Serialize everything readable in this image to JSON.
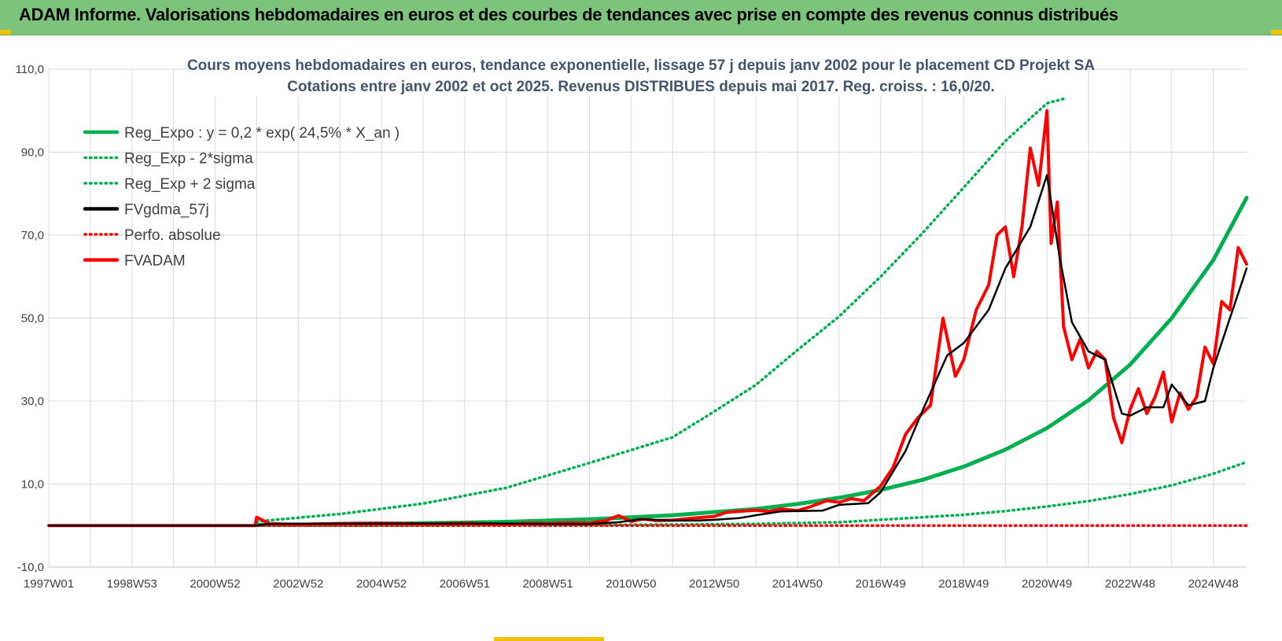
{
  "header": {
    "title": "ADAM Informe. Valorisations hebdomadaires en euros et des courbes de tendances avec prise en compte des revenus connus distribués"
  },
  "chart_data": {
    "type": "line",
    "title": "Cours moyens hebdomadaires en euros, tendance exponentielle, lissage 57 j depuis janv 2002 pour le placement CD Projekt SA",
    "subtitle": "Cotations entre janv 2002 et oct 2025. Revenus DISTRIBUES depuis mai 2017. Reg. croiss. : 16,0/20.",
    "xlabel": "",
    "ylabel": "",
    "x_range": [
      1997.0,
      2025.8
    ],
    "ylim": [
      -10,
      110
    ],
    "y_ticks": [
      -10,
      10,
      30,
      50,
      70,
      90,
      110
    ],
    "y_tick_labels": [
      "-10,0",
      "10,0",
      "30,0",
      "50,0",
      "70,0",
      "90,0",
      "110,0"
    ],
    "x_ticks": [
      {
        "label": "1997W01",
        "x": 1997.0
      },
      {
        "label": "1998W53",
        "x": 1999.0
      },
      {
        "label": "2000W52",
        "x": 2001.0
      },
      {
        "label": "2002W52",
        "x": 2003.0
      },
      {
        "label": "2004W52",
        "x": 2005.0
      },
      {
        "label": "2006W51",
        "x": 2007.0
      },
      {
        "label": "2008W51",
        "x": 2009.0
      },
      {
        "label": "2010W50",
        "x": 2011.0
      },
      {
        "label": "2012W50",
        "x": 2013.0
      },
      {
        "label": "2014W50",
        "x": 2015.0
      },
      {
        "label": "2016W49",
        "x": 2017.0
      },
      {
        "label": "2018W49",
        "x": 2019.0
      },
      {
        "label": "2020W49",
        "x": 2021.0
      },
      {
        "label": "2022W48",
        "x": 2023.0
      },
      {
        "label": "2024W48",
        "x": 2025.0
      }
    ],
    "grid": true,
    "legend_position": "top-left",
    "series": [
      {
        "name": "Reg_Expo : y = 0,2 * exp( 24,5% *  X_an )",
        "color": "#00b050",
        "style": "solid",
        "x": [
          2002.0,
          2004.0,
          2006.0,
          2008.0,
          2010.0,
          2012.0,
          2014.0,
          2015.0,
          2016.0,
          2017.0,
          2018.0,
          2019.0,
          2020.0,
          2021.0,
          2022.0,
          2023.0,
          2024.0,
          2025.0,
          2025.8
        ],
        "y": [
          0.2,
          0.3,
          0.55,
          0.9,
          1.5,
          2.5,
          4.0,
          5.2,
          6.7,
          8.6,
          11.0,
          14.2,
          18.3,
          23.5,
          30.2,
          38.8,
          50.0,
          64.0,
          79.0
        ]
      },
      {
        "name": "Reg_Exp - 2*sigma",
        "color": "#00b050",
        "style": "dotted",
        "x": [
          2002.0,
          2004.0,
          2006.0,
          2008.0,
          2010.0,
          2012.0,
          2014.0,
          2016.0,
          2018.0,
          2019.0,
          2020.0,
          2021.0,
          2022.0,
          2023.0,
          2024.0,
          2025.0,
          2025.8
        ],
        "y": [
          0.0,
          0.0,
          0.05,
          0.1,
          0.15,
          0.25,
          0.4,
          0.8,
          2.0,
          2.6,
          3.5,
          4.6,
          5.9,
          7.6,
          9.7,
          12.5,
          15.3
        ]
      },
      {
        "name": "Reg_Exp + 2 sigma",
        "color": "#00b050",
        "style": "dotted",
        "x": [
          2002.0,
          2004.0,
          2006.0,
          2008.0,
          2010.0,
          2012.0,
          2013.0,
          2014.0,
          2015.0,
          2016.0,
          2017.0,
          2018.0,
          2019.0,
          2020.0,
          2021.0,
          2021.45
        ],
        "y": [
          1.0,
          2.8,
          5.3,
          9.1,
          15.1,
          21.3,
          27.5,
          33.9,
          42.3,
          50.4,
          60.0,
          70.4,
          81.5,
          92.7,
          101.8,
          103.0
        ]
      },
      {
        "name": "FVgdma_57j",
        "color": "#000000",
        "style": "solid",
        "x": [
          1997.0,
          2001.96,
          2002.3,
          2004.0,
          2006.0,
          2008.0,
          2009.0,
          2010.0,
          2010.7,
          2011.2,
          2012.0,
          2012.6,
          2013.0,
          2013.6,
          2014.0,
          2014.6,
          2015.0,
          2015.6,
          2016.0,
          2016.7,
          2017.0,
          2017.6,
          2018.0,
          2018.6,
          2019.0,
          2019.6,
          2020.0,
          2020.6,
          2021.0,
          2021.3,
          2021.6,
          2022.0,
          2022.4,
          2022.8,
          2023.0,
          2023.4,
          2023.8,
          2024.0,
          2024.4,
          2024.8,
          2025.0,
          2025.4,
          2025.8
        ],
        "y": [
          0.0,
          0.0,
          0.4,
          0.5,
          0.5,
          0.5,
          0.4,
          0.4,
          0.8,
          1.5,
          1.2,
          1.2,
          1.4,
          1.8,
          2.5,
          3.4,
          3.5,
          3.6,
          5.0,
          5.4,
          8.0,
          18.0,
          27.5,
          41.0,
          44.0,
          52.0,
          62.0,
          72.0,
          84.5,
          65.0,
          49.0,
          42.0,
          40.0,
          27.0,
          26.5,
          28.5,
          28.5,
          34.0,
          29.0,
          30.0,
          38.0,
          50.0,
          62.0
        ]
      },
      {
        "name": "Perfo. absolue",
        "color": "#ff0000",
        "style": "dotted",
        "x": [
          1997.0,
          2025.8
        ],
        "y": [
          0.0,
          0.0
        ]
      },
      {
        "name": "FVADAM",
        "color": "#ff0000",
        "style": "solid",
        "x": [
          1997.0,
          2001.96,
          2002.0,
          2002.3,
          2003.0,
          2004.0,
          2005.0,
          2006.0,
          2007.0,
          2008.0,
          2008.5,
          2009.0,
          2009.5,
          2010.0,
          2010.4,
          2010.7,
          2011.0,
          2011.3,
          2011.6,
          2012.0,
          2012.5,
          2013.0,
          2013.3,
          2013.7,
          2014.0,
          2014.3,
          2014.6,
          2015.0,
          2015.3,
          2015.7,
          2016.0,
          2016.3,
          2016.6,
          2017.0,
          2017.3,
          2017.6,
          2017.9,
          2018.2,
          2018.5,
          2018.8,
          2019.0,
          2019.3,
          2019.6,
          2019.8,
          2020.0,
          2020.2,
          2020.4,
          2020.6,
          2020.8,
          2021.0,
          2021.1,
          2021.25,
          2021.4,
          2021.6,
          2021.8,
          2022.0,
          2022.2,
          2022.4,
          2022.6,
          2022.8,
          2023.0,
          2023.2,
          2023.4,
          2023.6,
          2023.8,
          2024.0,
          2024.2,
          2024.4,
          2024.6,
          2024.8,
          2025.0,
          2025.2,
          2025.4,
          2025.6,
          2025.8
        ],
        "y": [
          0.0,
          0.0,
          2.0,
          0.5,
          0.3,
          0.5,
          0.6,
          0.4,
          0.6,
          0.3,
          0.6,
          0.5,
          0.7,
          0.6,
          1.2,
          2.4,
          1.0,
          1.6,
          1.2,
          1.3,
          1.8,
          2.2,
          3.2,
          3.5,
          3.7,
          3.4,
          4.0,
          3.6,
          4.5,
          6.0,
          5.6,
          6.5,
          6.0,
          9.5,
          14.0,
          22.0,
          26.0,
          29.0,
          50.0,
          36.0,
          40.0,
          52.0,
          58.0,
          70.0,
          72.0,
          60.0,
          72.0,
          91.0,
          82.0,
          100.0,
          68.0,
          78.0,
          48.0,
          40.0,
          45.0,
          38.0,
          42.0,
          40.0,
          26.0,
          20.0,
          28.0,
          33.0,
          27.0,
          31.0,
          37.0,
          25.0,
          32.0,
          28.0,
          31.0,
          43.0,
          39.0,
          54.0,
          52.0,
          67.0,
          63.0
        ]
      }
    ]
  }
}
